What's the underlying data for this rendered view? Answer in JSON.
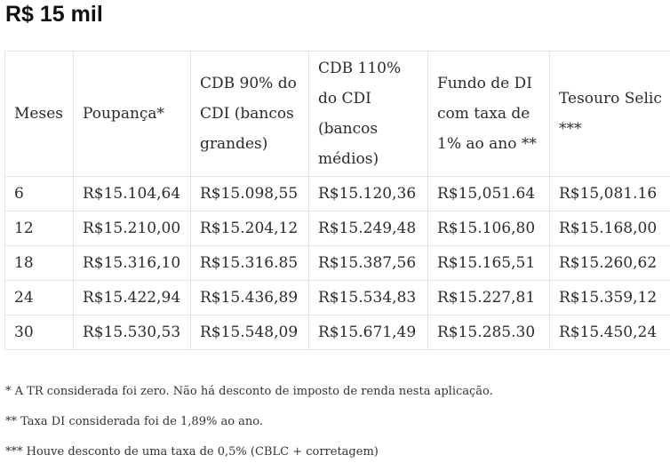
{
  "title": "R$ 15 mil",
  "table": {
    "headers": [
      "Meses",
      "Poupança*",
      "CDB 90% do CDI (bancos grandes)",
      "CDB 110% do CDI (bancos médios)",
      "Fundo de DI com taxa de 1% ao ano **",
      "Tesouro Selic ***"
    ],
    "rows": [
      [
        "6",
        "R$15.104,64",
        "R$15.098,55",
        "R$15.120,36",
        "R$15,051.64",
        "R$15,081.16"
      ],
      [
        "12",
        "R$15.210,00",
        "R$15.204,12",
        "R$15.249,48",
        "R$15.106,80",
        "R$15.168,00"
      ],
      [
        "18",
        "R$15.316,10",
        "R$15.316.85",
        "R$15.387,56",
        "R$15.165,51",
        "R$15.260,62"
      ],
      [
        "24",
        "R$15.422,94",
        "R$15.436,89",
        "R$15.534,83",
        "R$15.227,81",
        "R$15.359,12"
      ],
      [
        "30",
        "R$15.530,53",
        "R$15.548,09",
        "R$15.671,49",
        "R$15.285.30",
        "R$15.450,24"
      ]
    ]
  },
  "notes": [
    "* A TR considerada foi zero. Não há desconto de imposto de renda nesta aplicação.",
    "** Taxa DI considerada foi de 1,89% ao ano.",
    "*** Houve desconto de uma taxa de 0,5% (CBLC + corretagem)"
  ]
}
